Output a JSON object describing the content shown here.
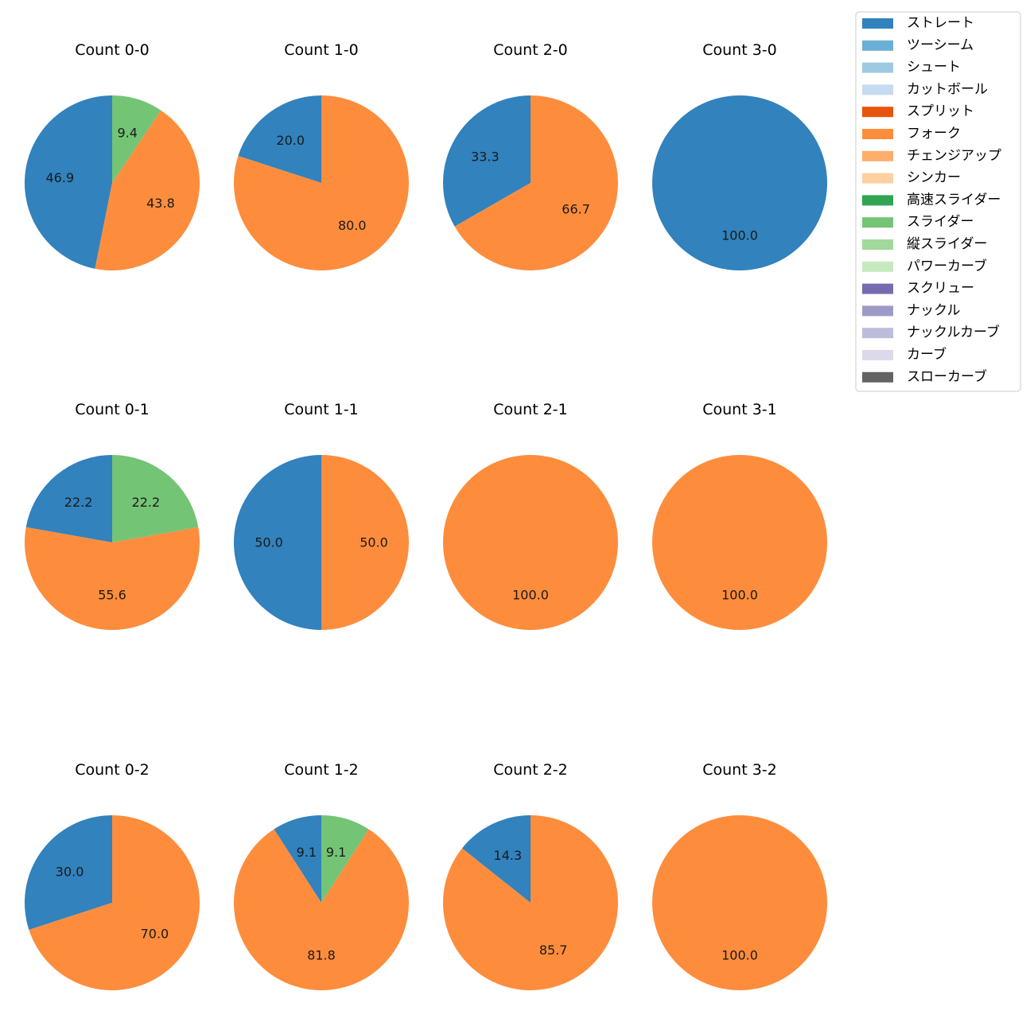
{
  "legend": {
    "entries": [
      {
        "label": "ストレート",
        "color": "#3182bd"
      },
      {
        "label": "ツーシーム",
        "color": "#6baed6"
      },
      {
        "label": "シュート",
        "color": "#9ecae1"
      },
      {
        "label": "カットボール",
        "color": "#c6dbef"
      },
      {
        "label": "スプリット",
        "color": "#e6550d"
      },
      {
        "label": "フォーク",
        "color": "#fd8d3c"
      },
      {
        "label": "チェンジアップ",
        "color": "#fdae6b"
      },
      {
        "label": "シンカー",
        "color": "#fdd0a2"
      },
      {
        "label": "高速スライダー",
        "color": "#31a354"
      },
      {
        "label": "スライダー",
        "color": "#74c476"
      },
      {
        "label": "縦スライダー",
        "color": "#a1d99b"
      },
      {
        "label": "パワーカーブ",
        "color": "#c7e9c0"
      },
      {
        "label": "スクリュー",
        "color": "#756bb1"
      },
      {
        "label": "ナックル",
        "color": "#9e9ac8"
      },
      {
        "label": "ナックルカーブ",
        "color": "#bcbddc"
      },
      {
        "label": "カーブ",
        "color": "#dadaeb"
      },
      {
        "label": "スローカーブ",
        "color": "#636363"
      }
    ]
  },
  "chart_data": [
    {
      "type": "pie",
      "title": "Count 0-0",
      "slices": [
        {
          "pitch": "ストレート",
          "value": 46.9,
          "label": "46.9"
        },
        {
          "pitch": "フォーク",
          "value": 43.8,
          "label": "43.8"
        },
        {
          "pitch": "スライダー",
          "value": 9.4,
          "label": "9.4"
        }
      ]
    },
    {
      "type": "pie",
      "title": "Count 1-0",
      "slices": [
        {
          "pitch": "ストレート",
          "value": 20.0,
          "label": "20.0"
        },
        {
          "pitch": "フォーク",
          "value": 80.0,
          "label": "80.0"
        }
      ]
    },
    {
      "type": "pie",
      "title": "Count 2-0",
      "slices": [
        {
          "pitch": "ストレート",
          "value": 33.3,
          "label": "33.3"
        },
        {
          "pitch": "フォーク",
          "value": 66.7,
          "label": "66.7"
        }
      ]
    },
    {
      "type": "pie",
      "title": "Count 3-0",
      "slices": [
        {
          "pitch": "ストレート",
          "value": 100.0,
          "label": "100.0"
        }
      ]
    },
    {
      "type": "pie",
      "title": "Count 0-1",
      "slices": [
        {
          "pitch": "ストレート",
          "value": 22.2,
          "label": "22.2"
        },
        {
          "pitch": "フォーク",
          "value": 55.6,
          "label": "55.6"
        },
        {
          "pitch": "スライダー",
          "value": 22.2,
          "label": "22.2"
        }
      ]
    },
    {
      "type": "pie",
      "title": "Count 1-1",
      "slices": [
        {
          "pitch": "ストレート",
          "value": 50.0,
          "label": "50.0"
        },
        {
          "pitch": "フォーク",
          "value": 50.0,
          "label": "50.0"
        }
      ]
    },
    {
      "type": "pie",
      "title": "Count 2-1",
      "slices": [
        {
          "pitch": "フォーク",
          "value": 100.0,
          "label": "100.0"
        }
      ]
    },
    {
      "type": "pie",
      "title": "Count 3-1",
      "slices": [
        {
          "pitch": "フォーク",
          "value": 100.0,
          "label": "100.0"
        }
      ]
    },
    {
      "type": "pie",
      "title": "Count 0-2",
      "slices": [
        {
          "pitch": "ストレート",
          "value": 30.0,
          "label": "30.0"
        },
        {
          "pitch": "フォーク",
          "value": 70.0,
          "label": "70.0"
        }
      ]
    },
    {
      "type": "pie",
      "title": "Count 1-2",
      "slices": [
        {
          "pitch": "ストレート",
          "value": 9.1,
          "label": "9.1"
        },
        {
          "pitch": "フォーク",
          "value": 81.8,
          "label": "81.8"
        },
        {
          "pitch": "スライダー",
          "value": 9.1,
          "label": "9.1"
        }
      ]
    },
    {
      "type": "pie",
      "title": "Count 2-2",
      "slices": [
        {
          "pitch": "ストレート",
          "value": 14.3,
          "label": "14.3"
        },
        {
          "pitch": "フォーク",
          "value": 85.7,
          "label": "85.7"
        }
      ]
    },
    {
      "type": "pie",
      "title": "Count 3-2",
      "slices": [
        {
          "pitch": "フォーク",
          "value": 100.0,
          "label": "100.0"
        }
      ]
    }
  ]
}
